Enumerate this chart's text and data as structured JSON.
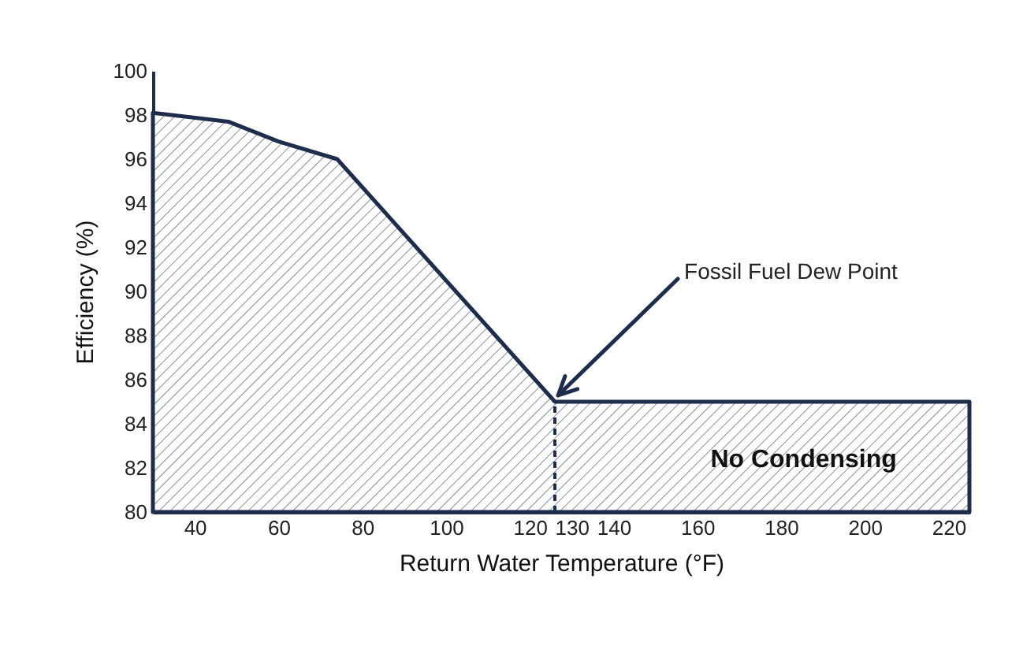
{
  "chart_data": {
    "type": "area",
    "xlabel": "Return Water Temperature (°F)",
    "ylabel": "Efficiency (%)",
    "x": [
      30,
      48,
      60,
      74,
      126,
      225
    ],
    "series": [
      {
        "color": "#1f2d4d",
        "values": [
          98.1,
          97.7,
          96.8,
          96,
          85,
          85
        ]
      }
    ],
    "xlim": [
      30,
      225
    ],
    "xticks": [
      40,
      60,
      80,
      100,
      120,
      130,
      140,
      160,
      180,
      200,
      220
    ],
    "ylim": [
      80,
      100
    ],
    "yticks": [
      80,
      82,
      84,
      86,
      88,
      90,
      92,
      94,
      96,
      98,
      100
    ],
    "ref_lines": [
      {
        "axis": "x",
        "value": 126,
        "line_style": "dashed",
        "color": "#1f2d4d"
      }
    ],
    "annotations": [
      {
        "text": "Fossil Fuel Dew Point",
        "x": 126,
        "y": 85
      },
      "No Condensing"
    ],
    "grid": false
  }
}
